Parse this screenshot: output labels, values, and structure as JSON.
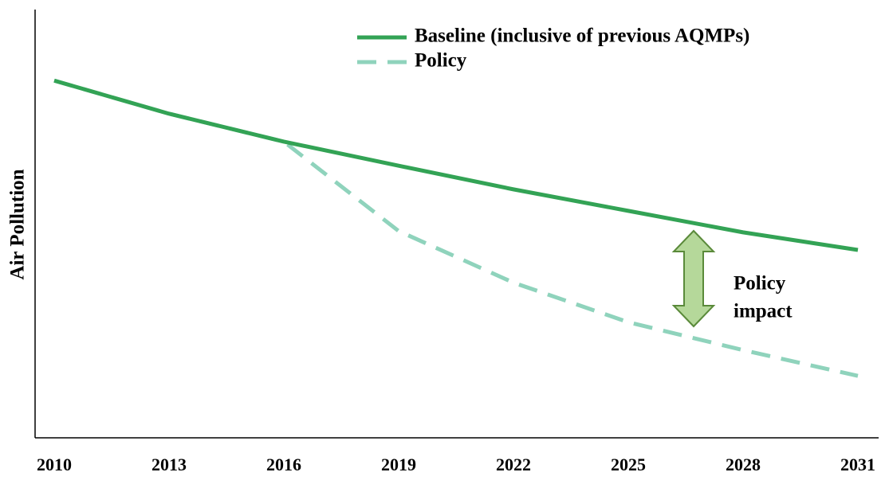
{
  "chart_data": {
    "type": "line",
    "y_label": "Air Pollution",
    "x": [
      2010,
      2013,
      2016,
      2019,
      2022,
      2025,
      2028,
      2031
    ],
    "series": [
      {
        "name": "Baseline (inclusive of previous AQMPs)",
        "color": "#33a355",
        "style": "solid",
        "values": [
          83.1,
          75.4,
          68.9,
          63.3,
          57.8,
          52.8,
          47.8,
          43.7
        ]
      },
      {
        "name": "Policy",
        "color": "#8fd3bc",
        "style": "dashed",
        "values": [
          83.1,
          75.4,
          68.9,
          48.1,
          36.1,
          26.9,
          20.4,
          14.4
        ]
      }
    ],
    "xlim": [
      2009.5,
      2031.5
    ],
    "xticks": [
      2010,
      2013,
      2016,
      2019,
      2022,
      2025,
      2028,
      2031
    ],
    "ylim": [
      0,
      100
    ],
    "legend": "upper right",
    "annotation": [
      "Policy",
      "impact"
    ]
  }
}
